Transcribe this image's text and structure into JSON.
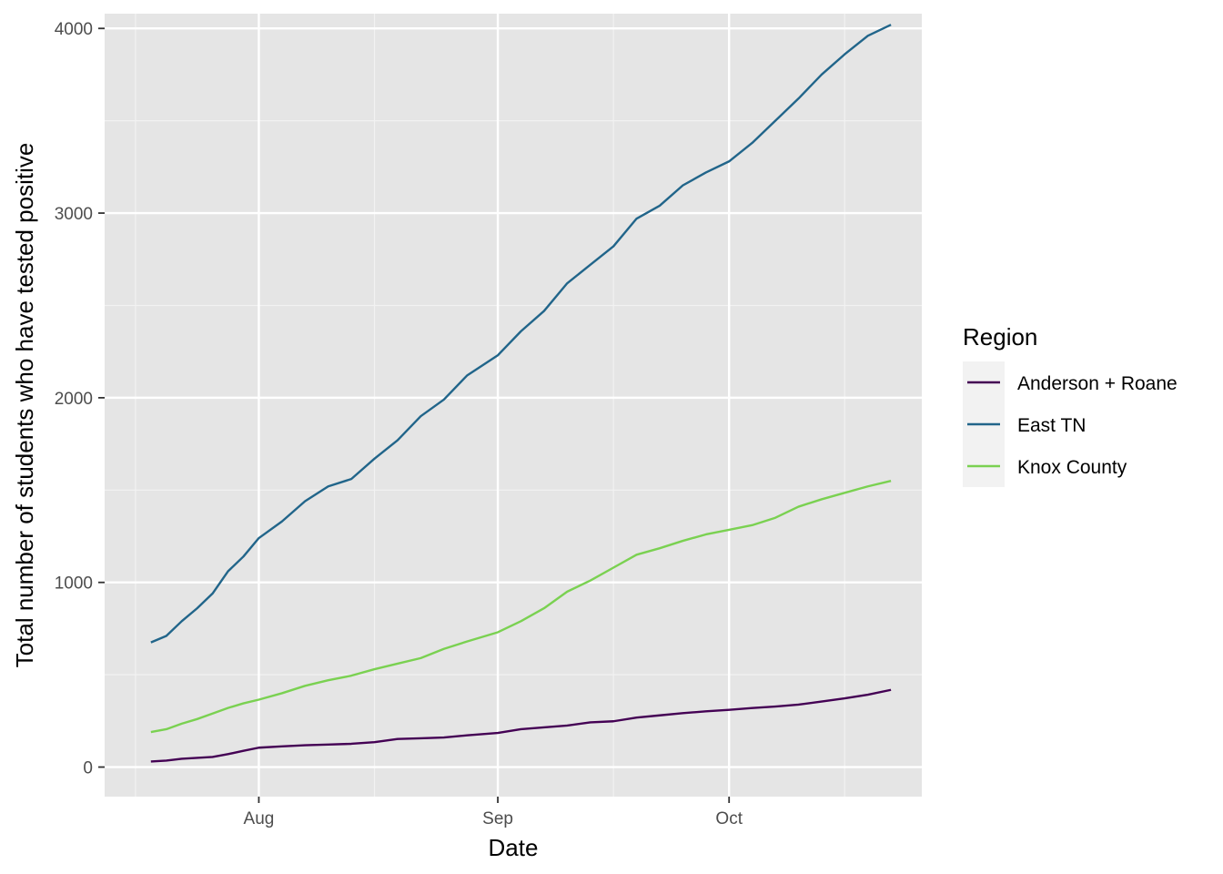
{
  "chart_data": {
    "type": "line",
    "xlabel": "Date",
    "ylabel": "Total number of students who have tested positive",
    "x_range": [
      "2020-07-12",
      "2020-10-26"
    ],
    "ylim": [
      -160,
      4080
    ],
    "y_ticks": [
      0,
      1000,
      2000,
      3000,
      4000
    ],
    "y_tick_labels": [
      "0",
      "1000",
      "2000",
      "3000",
      "4000"
    ],
    "x_ticks": [
      {
        "date": "2020-08-01",
        "label": "Aug"
      },
      {
        "date": "2020-09-01",
        "label": "Sep"
      },
      {
        "date": "2020-10-01",
        "label": "Oct"
      }
    ],
    "x_minor_ticks": [
      "2020-07-16",
      "2020-08-16",
      "2020-09-16",
      "2020-10-16"
    ],
    "grid": true,
    "panel_background": "#e5e5e5",
    "legend": {
      "title": "Region",
      "position": "right"
    },
    "series": [
      {
        "name": "Anderson + Roane",
        "color": "#440154",
        "points": [
          [
            "2020-07-18",
            30
          ],
          [
            "2020-07-20",
            35
          ],
          [
            "2020-07-22",
            45
          ],
          [
            "2020-07-24",
            50
          ],
          [
            "2020-07-26",
            55
          ],
          [
            "2020-07-28",
            70
          ],
          [
            "2020-07-30",
            88
          ],
          [
            "2020-08-01",
            105
          ],
          [
            "2020-08-04",
            112
          ],
          [
            "2020-08-07",
            118
          ],
          [
            "2020-08-10",
            122
          ],
          [
            "2020-08-13",
            126
          ],
          [
            "2020-08-16",
            135
          ],
          [
            "2020-08-19",
            152
          ],
          [
            "2020-08-22",
            156
          ],
          [
            "2020-08-25",
            160
          ],
          [
            "2020-08-28",
            172
          ],
          [
            "2020-09-01",
            185
          ],
          [
            "2020-09-04",
            205
          ],
          [
            "2020-09-07",
            215
          ],
          [
            "2020-09-10",
            225
          ],
          [
            "2020-09-13",
            242
          ],
          [
            "2020-09-16",
            248
          ],
          [
            "2020-09-19",
            268
          ],
          [
            "2020-09-22",
            280
          ],
          [
            "2020-09-25",
            292
          ],
          [
            "2020-09-28",
            302
          ],
          [
            "2020-10-01",
            310
          ],
          [
            "2020-10-04",
            320
          ],
          [
            "2020-10-07",
            328
          ],
          [
            "2020-10-10",
            338
          ],
          [
            "2020-10-13",
            355
          ],
          [
            "2020-10-16",
            372
          ],
          [
            "2020-10-19",
            392
          ],
          [
            "2020-10-22",
            418
          ]
        ]
      },
      {
        "name": "East TN",
        "color": "#21658a",
        "points": [
          [
            "2020-07-18",
            675
          ],
          [
            "2020-07-20",
            710
          ],
          [
            "2020-07-22",
            790
          ],
          [
            "2020-07-24",
            860
          ],
          [
            "2020-07-26",
            940
          ],
          [
            "2020-07-28",
            1060
          ],
          [
            "2020-07-30",
            1140
          ],
          [
            "2020-08-01",
            1240
          ],
          [
            "2020-08-04",
            1330
          ],
          [
            "2020-08-07",
            1440
          ],
          [
            "2020-08-10",
            1520
          ],
          [
            "2020-08-13",
            1560
          ],
          [
            "2020-08-16",
            1670
          ],
          [
            "2020-08-19",
            1770
          ],
          [
            "2020-08-22",
            1900
          ],
          [
            "2020-08-25",
            1990
          ],
          [
            "2020-08-28",
            2120
          ],
          [
            "2020-09-01",
            2230
          ],
          [
            "2020-09-04",
            2360
          ],
          [
            "2020-09-07",
            2470
          ],
          [
            "2020-09-10",
            2620
          ],
          [
            "2020-09-13",
            2720
          ],
          [
            "2020-09-16",
            2820
          ],
          [
            "2020-09-19",
            2970
          ],
          [
            "2020-09-22",
            3040
          ],
          [
            "2020-09-25",
            3150
          ],
          [
            "2020-09-28",
            3220
          ],
          [
            "2020-10-01",
            3280
          ],
          [
            "2020-10-04",
            3380
          ],
          [
            "2020-10-07",
            3500
          ],
          [
            "2020-10-10",
            3620
          ],
          [
            "2020-10-13",
            3750
          ],
          [
            "2020-10-16",
            3860
          ],
          [
            "2020-10-19",
            3960
          ],
          [
            "2020-10-22",
            4020
          ]
        ]
      },
      {
        "name": "Knox County",
        "color": "#7ad151",
        "points": [
          [
            "2020-07-18",
            190
          ],
          [
            "2020-07-20",
            205
          ],
          [
            "2020-07-22",
            235
          ],
          [
            "2020-07-24",
            260
          ],
          [
            "2020-07-26",
            290
          ],
          [
            "2020-07-28",
            320
          ],
          [
            "2020-07-30",
            345
          ],
          [
            "2020-08-01",
            365
          ],
          [
            "2020-08-04",
            400
          ],
          [
            "2020-08-07",
            440
          ],
          [
            "2020-08-10",
            470
          ],
          [
            "2020-08-13",
            495
          ],
          [
            "2020-08-16",
            530
          ],
          [
            "2020-08-19",
            560
          ],
          [
            "2020-08-22",
            590
          ],
          [
            "2020-08-25",
            640
          ],
          [
            "2020-08-28",
            680
          ],
          [
            "2020-09-01",
            730
          ],
          [
            "2020-09-04",
            790
          ],
          [
            "2020-09-07",
            860
          ],
          [
            "2020-09-10",
            950
          ],
          [
            "2020-09-13",
            1010
          ],
          [
            "2020-09-16",
            1080
          ],
          [
            "2020-09-19",
            1150
          ],
          [
            "2020-09-22",
            1185
          ],
          [
            "2020-09-25",
            1225
          ],
          [
            "2020-09-28",
            1260
          ],
          [
            "2020-10-01",
            1285
          ],
          [
            "2020-10-04",
            1310
          ],
          [
            "2020-10-07",
            1350
          ],
          [
            "2020-10-10",
            1410
          ],
          [
            "2020-10-13",
            1450
          ],
          [
            "2020-10-16",
            1485
          ],
          [
            "2020-10-19",
            1520
          ],
          [
            "2020-10-22",
            1550
          ]
        ]
      }
    ]
  }
}
